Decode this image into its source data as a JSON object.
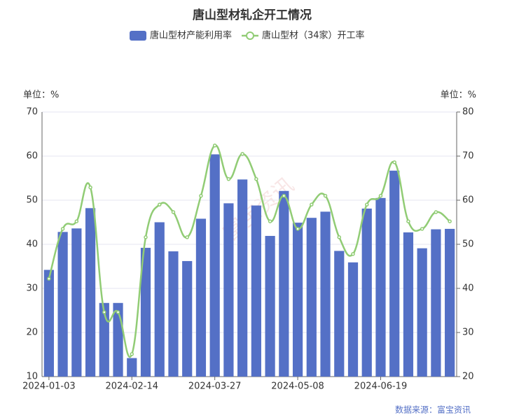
{
  "chart_data": {
    "type": "bar_line",
    "title": "唐山型材轧企开工情况",
    "y_label": "单位：%",
    "y2_label": "单位：%",
    "source": "数据来源：富宝资讯",
    "watermark": "富宝资讯",
    "categories": [
      "2024-01-03",
      null,
      null,
      null,
      null,
      null,
      "2024-02-14",
      null,
      null,
      null,
      null,
      null,
      "2024-03-27",
      null,
      null,
      null,
      null,
      null,
      "2024-05-08",
      null,
      null,
      null,
      null,
      null,
      "2024-06-19",
      null,
      null,
      null,
      null,
      null
    ],
    "series": [
      {
        "name": "唐山型材产能利用率",
        "type": "bar",
        "color": "#5470c6",
        "axis": "y",
        "values": [
          34.2,
          42.8,
          43.6,
          48.2,
          26.7,
          26.7,
          14.2,
          39.2,
          45.0,
          38.4,
          36.2,
          45.8,
          60.4,
          49.3,
          54.7,
          48.8,
          41.9,
          52.1,
          44.9,
          46.0,
          47.4,
          38.5,
          35.9,
          48.1,
          50.5,
          56.7,
          42.7,
          39.1,
          43.4,
          43.5
        ]
      },
      {
        "name": "唐山型材（34家）开工率",
        "type": "line",
        "color": "#91cc75",
        "axis": "y2",
        "values": [
          42.2,
          53.5,
          55.2,
          62.9,
          34.6,
          34.6,
          25.1,
          51.6,
          59.0,
          57.3,
          51.6,
          61.0,
          72.4,
          64.8,
          70.5,
          64.8,
          55.2,
          61.0,
          53.5,
          59.0,
          61.0,
          51.6,
          47.8,
          59.0,
          61.0,
          68.6,
          55.2,
          53.5,
          57.3,
          55.2
        ]
      }
    ],
    "ylim": [
      10,
      70
    ],
    "yticks": [
      10,
      20,
      30,
      40,
      50,
      60,
      70
    ],
    "y2lim": [
      20,
      80
    ],
    "y2ticks": [
      20,
      30,
      40,
      50,
      60,
      70,
      80
    ],
    "grid": true
  }
}
